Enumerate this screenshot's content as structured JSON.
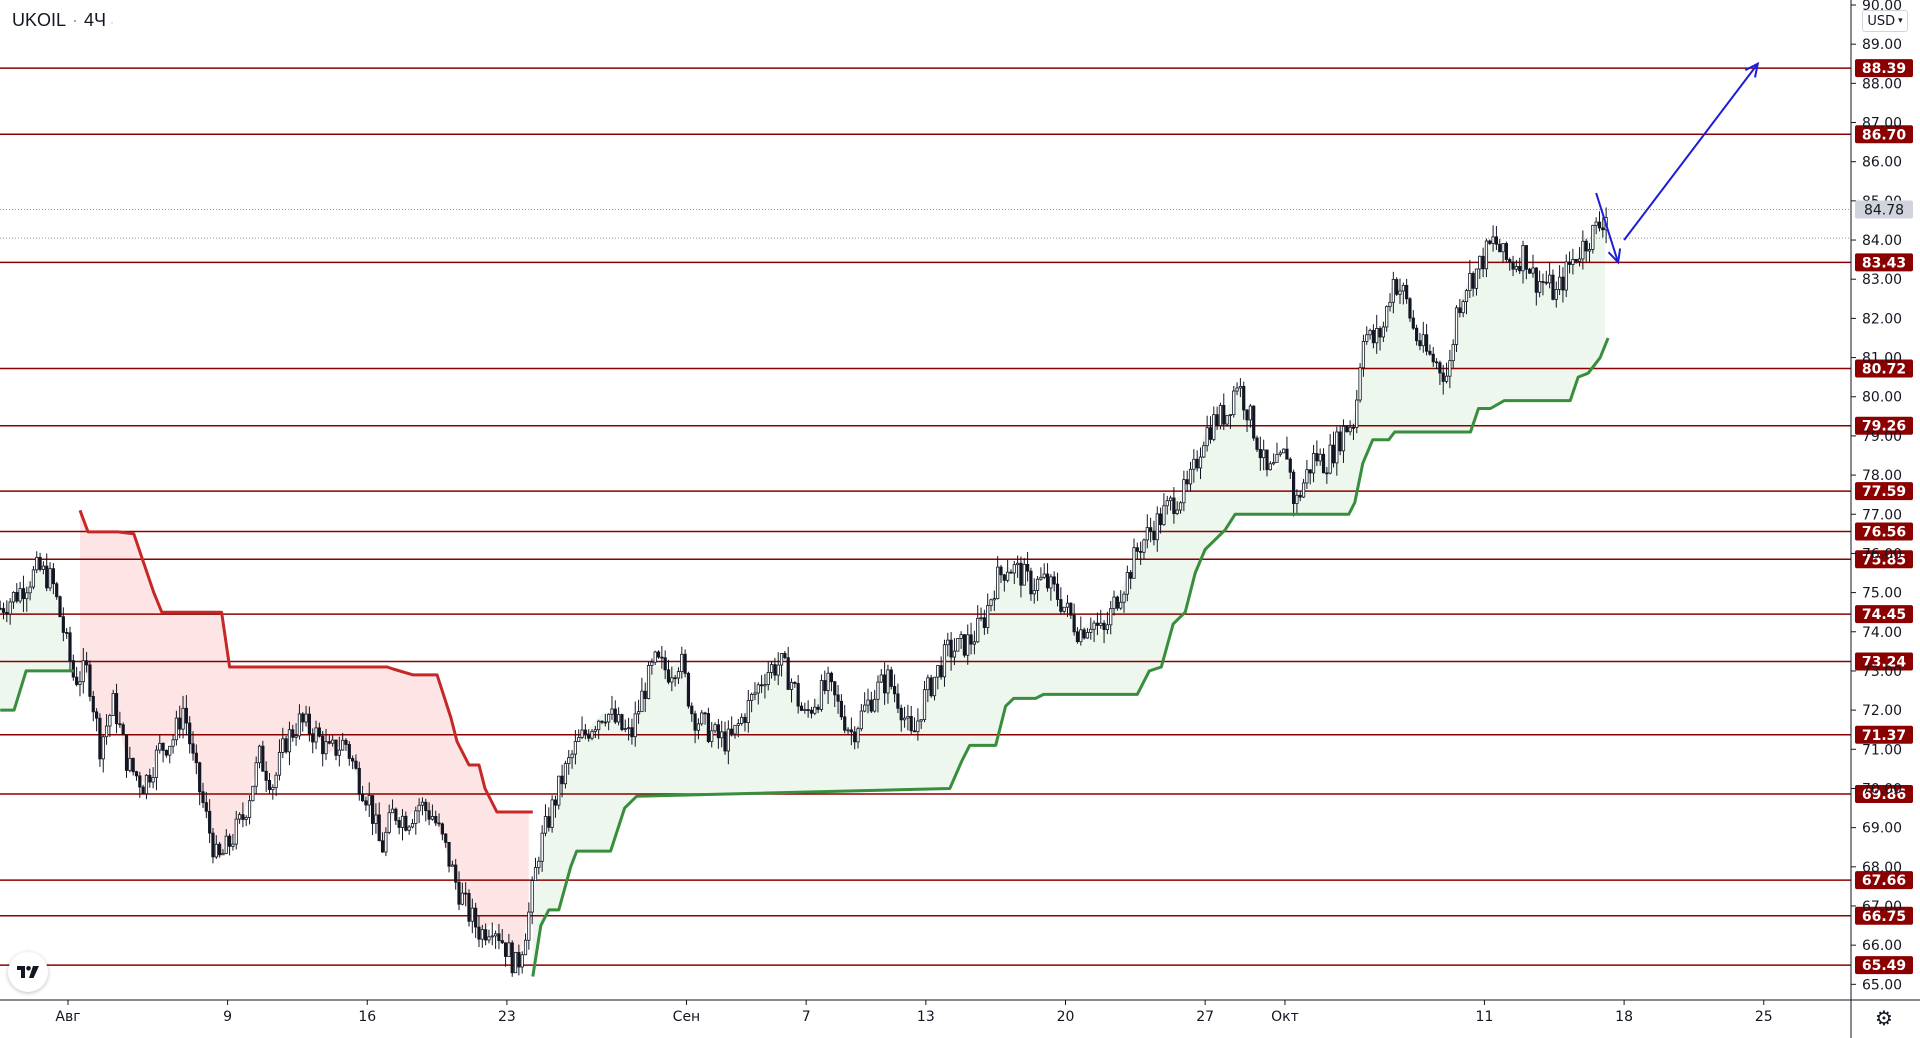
{
  "header": {
    "symbol": "UKOIL",
    "interval": "4Ч",
    "currency": "USD"
  },
  "colors": {
    "level_line": "#8b0000",
    "level_label_bg": "#8b0000",
    "supertrend_up": "#388e3c",
    "supertrend_down": "#c62828",
    "fill_up": "rgba(76,175,80,0.10)",
    "fill_down": "rgba(239,83,80,0.15)",
    "candle": "#131722",
    "arrow": "#1d1dd8",
    "last_price_bg": "#d1d4dc"
  },
  "chart_data": {
    "type": "candlestick",
    "symbol": "UKOIL",
    "interval": "4Ч",
    "ylim": [
      64.6,
      90.0
    ],
    "y_ticks": [
      {
        "value": 65,
        "label": "65.00"
      },
      {
        "value": 66,
        "label": "66.00"
      },
      {
        "value": 67,
        "label": "67.00"
      },
      {
        "value": 68,
        "label": "68.00"
      },
      {
        "value": 69,
        "label": "69.00"
      },
      {
        "value": 70,
        "label": "70.00"
      },
      {
        "value": 71,
        "label": "71.00"
      },
      {
        "value": 72,
        "label": "72.00"
      },
      {
        "value": 73,
        "label": "73.00"
      },
      {
        "value": 74,
        "label": "74.00"
      },
      {
        "value": 75,
        "label": "75.00"
      },
      {
        "value": 76,
        "label": "76.00"
      },
      {
        "value": 77,
        "label": "77.00"
      },
      {
        "value": 78,
        "label": "78.00"
      },
      {
        "value": 79,
        "label": "79.00"
      },
      {
        "value": 80,
        "label": "80.00"
      },
      {
        "value": 81,
        "label": "81.00"
      },
      {
        "value": 82,
        "label": "82.00"
      },
      {
        "value": 83,
        "label": "83.00"
      },
      {
        "value": 84,
        "label": "84.00"
      },
      {
        "value": 85,
        "label": "85.00"
      },
      {
        "value": 86,
        "label": "86.00"
      },
      {
        "value": 87,
        "label": "87.00"
      },
      {
        "value": 88,
        "label": "88.00"
      },
      {
        "value": 89,
        "label": "89.00"
      },
      {
        "value": 90,
        "label": "90.00"
      }
    ],
    "x_ticks": [
      {
        "day": 0,
        "label": "Авг"
      },
      {
        "day": 8,
        "label": "9"
      },
      {
        "day": 15,
        "label": "16"
      },
      {
        "day": 22,
        "label": "23"
      },
      {
        "day": 31,
        "label": "Сен"
      },
      {
        "day": 37,
        "label": "7"
      },
      {
        "day": 43,
        "label": "13"
      },
      {
        "day": 50,
        "label": "20"
      },
      {
        "day": 57,
        "label": "27"
      },
      {
        "day": 61,
        "label": "Окт"
      },
      {
        "day": 71,
        "label": "11"
      },
      {
        "day": 78,
        "label": "18"
      },
      {
        "day": 85,
        "label": "25"
      }
    ],
    "levels": [
      {
        "value": 88.39,
        "label": "88.39"
      },
      {
        "value": 86.7,
        "label": "86.70"
      },
      {
        "value": 83.43,
        "label": "83.43"
      },
      {
        "value": 80.72,
        "label": "80.72"
      },
      {
        "value": 79.26,
        "label": "79.26"
      },
      {
        "value": 77.59,
        "label": "77.59"
      },
      {
        "value": 76.56,
        "label": "76.56"
      },
      {
        "value": 75.85,
        "label": "75.85"
      },
      {
        "value": 74.45,
        "label": "74.45"
      },
      {
        "value": 73.24,
        "label": "73.24"
      },
      {
        "value": 71.37,
        "label": "71.37"
      },
      {
        "value": 69.86,
        "label": "69.86"
      },
      {
        "value": 67.66,
        "label": "67.66"
      },
      {
        "value": 66.75,
        "label": "66.75"
      },
      {
        "value": 65.49,
        "label": "65.49"
      }
    ],
    "last_price": {
      "value": 84.78,
      "label": "84.78"
    },
    "price_path": [
      [
        -3.4,
        74.6
      ],
      [
        -2.5,
        75.0
      ],
      [
        -1.5,
        75.6
      ],
      [
        -0.8,
        75.3
      ],
      [
        -0.3,
        74.2
      ],
      [
        0.3,
        72.8
      ],
      [
        1.0,
        73.0
      ],
      [
        1.6,
        71.1
      ],
      [
        2.3,
        72.2
      ],
      [
        3.0,
        70.6
      ],
      [
        3.8,
        70.1
      ],
      [
        4.6,
        71.0
      ],
      [
        5.3,
        71.3
      ],
      [
        5.8,
        72.1
      ],
      [
        6.3,
        70.6
      ],
      [
        7.0,
        69.1
      ],
      [
        7.5,
        68.1
      ],
      [
        8.1,
        68.6
      ],
      [
        8.8,
        69.3
      ],
      [
        9.6,
        70.8
      ],
      [
        10.3,
        70.1
      ],
      [
        10.9,
        71.2
      ],
      [
        11.6,
        71.7
      ],
      [
        12.4,
        71.4
      ],
      [
        13.1,
        70.9
      ],
      [
        13.9,
        71.2
      ],
      [
        14.5,
        70.3
      ],
      [
        15.1,
        69.7
      ],
      [
        15.7,
        68.4
      ],
      [
        16.3,
        69.4
      ],
      [
        17.0,
        69.2
      ],
      [
        17.6,
        69.6
      ],
      [
        18.3,
        69.3
      ],
      [
        18.9,
        68.5
      ],
      [
        19.5,
        67.5
      ],
      [
        20.1,
        66.8
      ],
      [
        20.7,
        66.3
      ],
      [
        21.3,
        66.6
      ],
      [
        21.9,
        66.0
      ],
      [
        22.5,
        65.4
      ],
      [
        23.1,
        66.8
      ],
      [
        23.6,
        68.4
      ],
      [
        24.2,
        69.4
      ],
      [
        24.8,
        70.3
      ],
      [
        25.5,
        71.1
      ],
      [
        26.2,
        71.6
      ],
      [
        26.9,
        72.0
      ],
      [
        27.6,
        71.6
      ],
      [
        28.2,
        71.3
      ],
      [
        28.8,
        72.4
      ],
      [
        29.4,
        73.2
      ],
      [
        30.1,
        73.0
      ],
      [
        30.7,
        73.3
      ],
      [
        31.3,
        71.9
      ],
      [
        31.9,
        71.6
      ],
      [
        32.5,
        71.3
      ],
      [
        33.2,
        71.2
      ],
      [
        33.8,
        71.8
      ],
      [
        34.4,
        72.4
      ],
      [
        35.0,
        73.0
      ],
      [
        35.7,
        73.2
      ],
      [
        36.3,
        72.7
      ],
      [
        36.9,
        71.8
      ],
      [
        37.5,
        72.3
      ],
      [
        38.1,
        72.6
      ],
      [
        38.7,
        72.0
      ],
      [
        39.3,
        71.4
      ],
      [
        39.9,
        72.0
      ],
      [
        40.5,
        72.5
      ],
      [
        41.1,
        72.8
      ],
      [
        41.7,
        72.2
      ],
      [
        42.3,
        71.2
      ],
      [
        42.9,
        72.3
      ],
      [
        43.5,
        72.9
      ],
      [
        44.1,
        73.5
      ],
      [
        44.7,
        73.6
      ],
      [
        45.3,
        73.8
      ],
      [
        45.9,
        74.3
      ],
      [
        46.5,
        75.3
      ],
      [
        47.1,
        75.7
      ],
      [
        47.7,
        75.5
      ],
      [
        48.3,
        75.2
      ],
      [
        48.9,
        75.3
      ],
      [
        49.5,
        75.0
      ],
      [
        50.1,
        74.5
      ],
      [
        50.7,
        74.0
      ],
      [
        51.3,
        74.3
      ],
      [
        51.9,
        73.9
      ],
      [
        52.5,
        74.8
      ],
      [
        53.1,
        75.4
      ],
      [
        53.7,
        76.2
      ],
      [
        54.3,
        76.6
      ],
      [
        54.9,
        77.0
      ],
      [
        55.5,
        77.4
      ],
      [
        56.1,
        77.6
      ],
      [
        56.5,
        78.2
      ],
      [
        56.9,
        79.0
      ],
      [
        57.5,
        79.4
      ],
      [
        58.1,
        79.6
      ],
      [
        58.6,
        80.4
      ],
      [
        59.1,
        79.7
      ],
      [
        59.6,
        78.9
      ],
      [
        60.1,
        78.0
      ],
      [
        60.6,
        78.2
      ],
      [
        61.1,
        78.6
      ],
      [
        61.5,
        77.2
      ],
      [
        62.0,
        77.9
      ],
      [
        62.5,
        78.5
      ],
      [
        63.0,
        78.3
      ],
      [
        63.5,
        78.7
      ],
      [
        64.0,
        79.2
      ],
      [
        64.5,
        79.4
      ],
      [
        64.9,
        81.7
      ],
      [
        65.4,
        81.4
      ],
      [
        65.9,
        81.7
      ],
      [
        66.4,
        83.0
      ],
      [
        67.0,
        82.6
      ],
      [
        67.5,
        81.6
      ],
      [
        68.1,
        81.1
      ],
      [
        68.7,
        80.8
      ],
      [
        69.2,
        80.5
      ],
      [
        69.6,
        82.2
      ],
      [
        70.1,
        82.9
      ],
      [
        70.6,
        83.2
      ],
      [
        71.0,
        83.6
      ],
      [
        71.5,
        84.0
      ],
      [
        72.0,
        83.5
      ],
      [
        72.5,
        83.4
      ],
      [
        73.0,
        83.7
      ],
      [
        73.5,
        83.0
      ],
      [
        74.1,
        82.9
      ],
      [
        74.6,
        82.6
      ],
      [
        75.2,
        83.3
      ],
      [
        75.7,
        83.7
      ],
      [
        76.3,
        84.1
      ],
      [
        76.8,
        84.4
      ],
      [
        77.2,
        84.78
      ]
    ],
    "supertrend_down": [
      [
        0.6,
        77.1
      ],
      [
        1.0,
        76.55
      ],
      [
        2.5,
        76.55
      ],
      [
        3.3,
        76.5
      ],
      [
        4.3,
        75.0
      ],
      [
        4.7,
        74.5
      ],
      [
        7.7,
        74.5
      ],
      [
        8.1,
        73.1
      ],
      [
        15.2,
        73.1
      ],
      [
        16.0,
        73.1
      ],
      [
        16.3,
        73.05
      ],
      [
        17.3,
        72.9
      ],
      [
        18.5,
        72.9
      ],
      [
        19.2,
        71.8
      ],
      [
        19.5,
        71.2
      ],
      [
        20.1,
        70.6
      ],
      [
        20.6,
        70.6
      ],
      [
        20.9,
        70.0
      ],
      [
        21.5,
        69.4
      ],
      [
        23.3,
        69.4
      ]
    ],
    "supertrend_up": [
      [
        -3.4,
        72.0
      ],
      [
        -2.7,
        72.0
      ],
      [
        -2.1,
        73.0
      ],
      [
        0.3,
        73.0
      ],
      [
        23.3,
        65.2
      ],
      [
        23.7,
        66.5
      ],
      [
        24.1,
        66.9
      ],
      [
        24.6,
        66.9
      ],
      [
        25.2,
        68.0
      ],
      [
        25.5,
        68.4
      ],
      [
        27.2,
        68.4
      ],
      [
        27.9,
        69.5
      ],
      [
        28.5,
        69.8
      ],
      [
        44.2,
        70.0
      ],
      [
        44.8,
        70.7
      ],
      [
        45.2,
        71.1
      ],
      [
        46.5,
        71.1
      ],
      [
        47.0,
        72.1
      ],
      [
        47.4,
        72.3
      ],
      [
        48.5,
        72.3
      ],
      [
        48.9,
        72.4
      ],
      [
        53.6,
        72.4
      ],
      [
        54.2,
        73.0
      ],
      [
        54.8,
        73.1
      ],
      [
        55.4,
        74.2
      ],
      [
        56.0,
        74.5
      ],
      [
        56.5,
        75.5
      ],
      [
        57.0,
        76.1
      ],
      [
        58.0,
        76.6
      ],
      [
        58.5,
        77.0
      ],
      [
        64.2,
        77.0
      ],
      [
        64.5,
        77.3
      ],
      [
        64.9,
        78.3
      ],
      [
        65.4,
        78.9
      ],
      [
        66.2,
        78.9
      ],
      [
        66.5,
        79.1
      ],
      [
        70.3,
        79.1
      ],
      [
        70.7,
        79.7
      ],
      [
        71.3,
        79.7
      ],
      [
        72.0,
        79.9
      ],
      [
        75.3,
        79.9
      ],
      [
        75.7,
        80.5
      ],
      [
        76.2,
        80.6
      ],
      [
        76.8,
        81.0
      ],
      [
        77.2,
        81.5
      ]
    ],
    "projection": {
      "correction": {
        "from": [
          76.6,
          85.2
        ],
        "to": [
          77.7,
          83.43
        ]
      },
      "target": {
        "from": [
          78.0,
          84.0
        ],
        "to": [
          84.7,
          88.5
        ]
      }
    }
  },
  "icons": {
    "logo": "tradingview-logo-icon",
    "settings": "gear-icon"
  }
}
